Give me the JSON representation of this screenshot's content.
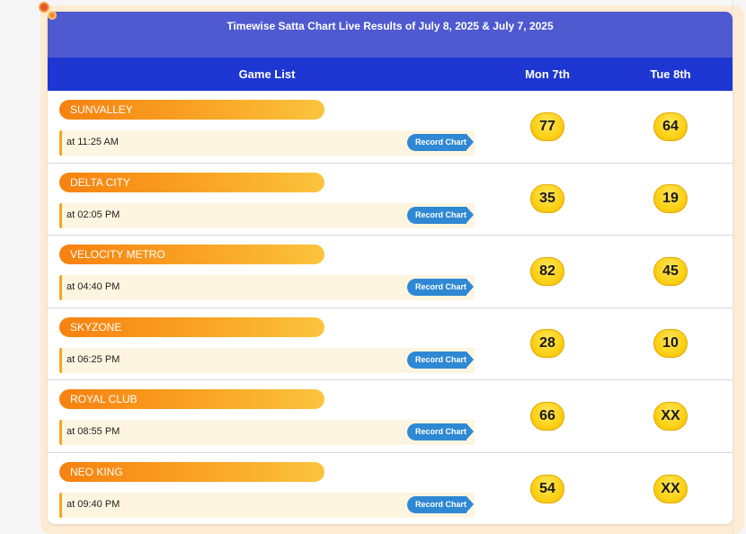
{
  "banner": {
    "title": "Timewise Satta Chart Live Results of July 8, 2025 & July 7, 2025"
  },
  "table": {
    "headers": {
      "game_list": "Game List",
      "day1": "Mon 7th",
      "day2": "Tue 8th"
    },
    "record_label": "Record Chart",
    "rows": [
      {
        "name": "SUNVALLEY",
        "time": "at 11:25 AM",
        "day1": "77",
        "day2": "64"
      },
      {
        "name": "DELTA CITY",
        "time": "at 02:05 PM",
        "day1": "35",
        "day2": "19"
      },
      {
        "name": "VELOCITY METRO",
        "time": "at 04:40 PM",
        "day1": "82",
        "day2": "45"
      },
      {
        "name": "SKYZONE",
        "time": "at 06:25 PM",
        "day1": "28",
        "day2": "10"
      },
      {
        "name": "ROYAL CLUB",
        "time": "at 08:55 PM",
        "day1": "66",
        "day2": "XX"
      },
      {
        "name": "NEO KING",
        "time": "at 09:40 PM",
        "day1": "54",
        "day2": "XX"
      }
    ]
  },
  "colors": {
    "banner": "#4f5ad0",
    "header": "#1e36d2",
    "pill_start": "#f7810f",
    "pill_end": "#fbc43e",
    "record_button": "#2f88d4",
    "result_badge": "#fcd116"
  }
}
